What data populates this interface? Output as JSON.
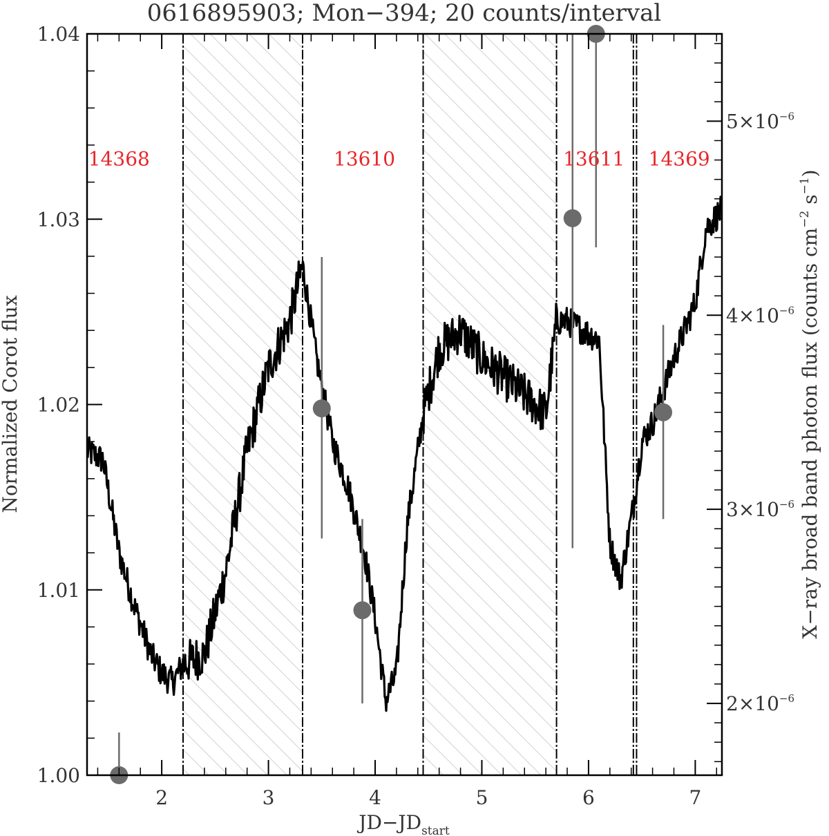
{
  "chart_data": {
    "type": "line",
    "title": "0616895903; Mon−394; 20 counts/interval",
    "xlabel": "JD−JD",
    "xlabel_subscript": "start",
    "ylabel_left": "Normalized Corot flux",
    "ylabel_right": "X−ray broad band photon flux (counts cm",
    "ylabel_right_exp1": "−2",
    "ylabel_right_mid": " s",
    "ylabel_right_exp2": "−1",
    "ylabel_right_end": ")",
    "xlim": [
      1.3,
      7.25
    ],
    "ylim_left": [
      1.0,
      1.04
    ],
    "ylim_right": [
      1.63e-06,
      5.45e-06
    ],
    "x_ticks": [
      "2",
      "3",
      "4",
      "5",
      "6",
      "7"
    ],
    "y_left_ticks": [
      "1.00",
      "1.01",
      "1.02",
      "1.03",
      "1.04"
    ],
    "y_right_ticks": [
      {
        "mantissa": "2×10",
        "exp": "−6",
        "value": 2e-06
      },
      {
        "mantissa": "3×10",
        "exp": "−6",
        "value": 3e-06
      },
      {
        "mantissa": "4×10",
        "exp": "−6",
        "value": 4e-06
      },
      {
        "mantissa": "5×10",
        "exp": "−6",
        "value": 5e-06
      }
    ],
    "hatched_gaps": [
      [
        2.2,
        3.32
      ],
      [
        4.45,
        5.7
      ]
    ],
    "segment_boundaries": [
      2.2,
      3.32,
      4.45,
      5.7,
      6.42,
      6.45
    ],
    "observation_labels": [
      {
        "text": "14368",
        "x": 1.6,
        "y": 1.0329
      },
      {
        "text": "13610",
        "x": 3.9,
        "y": 1.0329
      },
      {
        "text": "13611",
        "x": 6.05,
        "y": 1.0329
      },
      {
        "text": "14369",
        "x": 6.85,
        "y": 1.0329
      }
    ],
    "corot_lightcurve": {
      "x": [
        1.3,
        1.45,
        1.6,
        1.75,
        1.9,
        2.0,
        2.1,
        2.2,
        2.4,
        2.6,
        2.8,
        3.0,
        3.2,
        3.32,
        3.45,
        3.6,
        3.75,
        3.9,
        4.0,
        4.1,
        4.2,
        4.3,
        4.45,
        4.6,
        4.8,
        5.0,
        5.2,
        5.4,
        5.6,
        5.7,
        5.8,
        5.95,
        6.1,
        6.2,
        6.3,
        6.42,
        6.5,
        6.6,
        6.8,
        7.0,
        7.1,
        7.25
      ],
      "y": [
        1.0175,
        1.017,
        1.012,
        1.009,
        1.0065,
        1.0055,
        1.005,
        1.006,
        1.0065,
        1.011,
        1.0175,
        1.022,
        1.0245,
        1.0275,
        1.0225,
        1.018,
        1.0155,
        1.012,
        1.0085,
        1.004,
        1.0055,
        1.0135,
        1.0195,
        1.023,
        1.024,
        1.0225,
        1.0215,
        1.0205,
        1.0195,
        1.0245,
        1.0245,
        1.024,
        1.0235,
        1.0125,
        1.0105,
        1.0145,
        1.018,
        1.019,
        1.0225,
        1.0255,
        1.0295,
        1.0305
      ]
    },
    "xray_points": {
      "x": [
        1.6,
        3.5,
        3.88,
        5.85,
        6.07,
        6.7
      ],
      "y": [
        1.63e-06,
        3.52e-06,
        2.48e-06,
        4.5e-06,
        5.45e-06,
        3.5e-06
      ],
      "yerr_low": [
        1.63e-06,
        2.85e-06,
        2e-06,
        2.8e-06,
        4.35e-06,
        2.95e-06
      ],
      "yerr_high": [
        1.85e-06,
        4.3e-06,
        2.95e-06,
        5.45e-06,
        5.45e-06,
        3.95e-06
      ]
    },
    "colors": {
      "lightcurve": "#000000",
      "xray": "#6b6b6b",
      "hatch": "#bdbdbd",
      "labels": "#e8262a",
      "axis": "#000000",
      "text": "#333333"
    },
    "grid": false,
    "legend": "none"
  }
}
